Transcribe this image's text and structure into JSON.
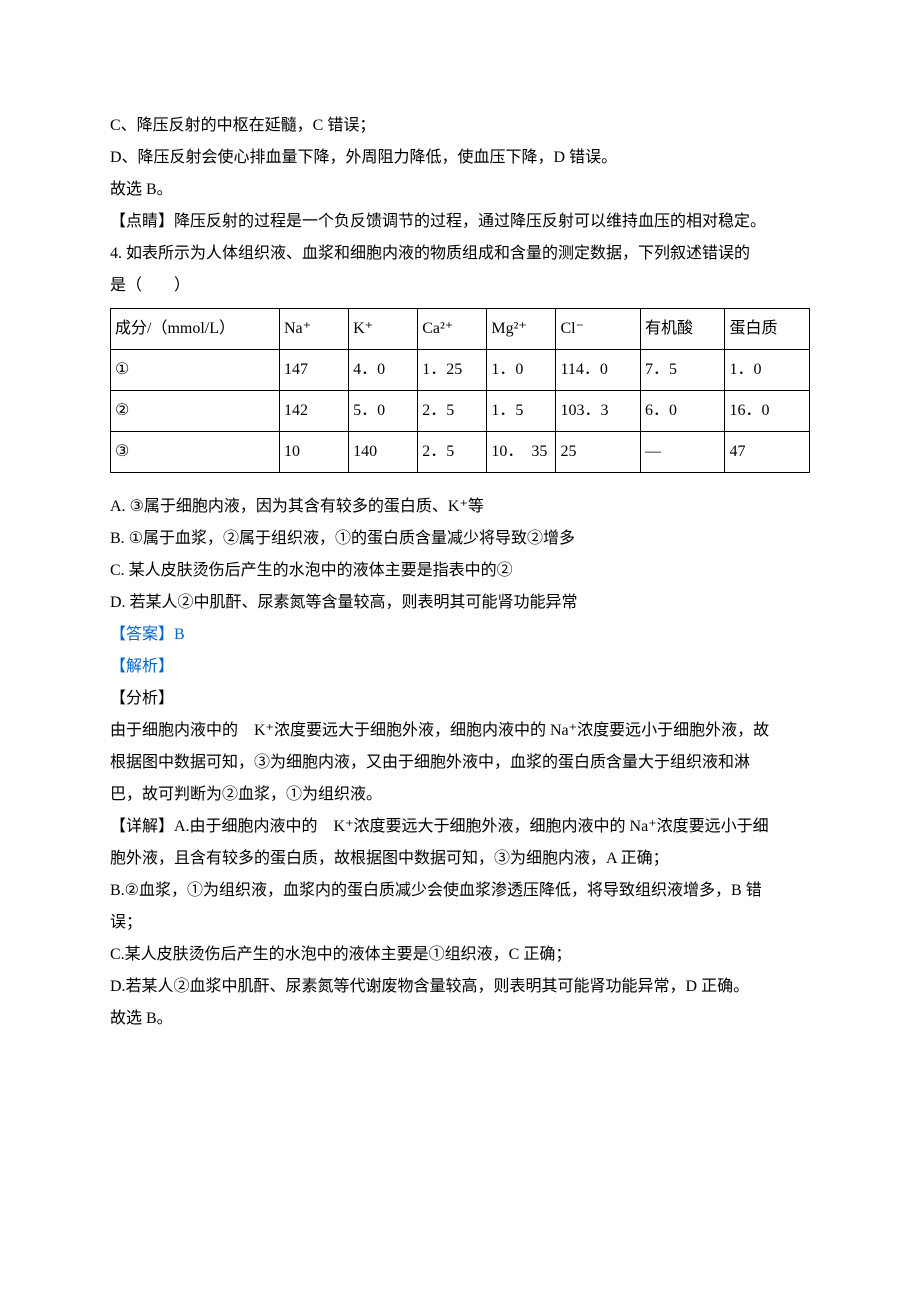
{
  "lines": {
    "pre1": "C、降压反射的中枢在延髓，C 错误；",
    "pre2": "D、降压反射会使心排血量下降，外周阻力降低，使血压下降，D 错误。",
    "pre3": "故选 B。",
    "pre4": "【点睛】降压反射的过程是一个负反馈调节的过程，通过降压反射可以维持血压的相对稳定。",
    "q4a": "4. 如表所示为人体组织液、血浆和细胞内液的物质组成和含量的测定数据，下列叙述错误的",
    "q4b": "是（　　）",
    "optA": "A. ③属于细胞内液，因为其含有较多的蛋白质、K⁺等",
    "optB": "B. ①属于血浆，②属于组织液，①的蛋白质含量减少将导致②增多",
    "optC": "C. 某人皮肤烫伤后产生的水泡中的液体主要是指表中的②",
    "optD": "D. 若某人②中肌酐、尿素氮等含量较高，则表明其可能肾功能异常",
    "ans": "【答案】B",
    "jiexi": "【解析】",
    "fenxi": "【分析】",
    "ana1": "由于细胞内液中的　K⁺浓度要远大于细胞外液，细胞内液中的 Na⁺浓度要远小于细胞外液，故",
    "ana2": "根据图中数据可知，③为细胞内液，又由于细胞外液中，血浆的蛋白质含量大于组织液和淋",
    "ana3": "巴，故可判断为②血浆，①为组织液。",
    "det1": "【详解】A.由于细胞内液中的　K⁺浓度要远大于细胞外液，细胞内液中的 Na⁺浓度要远小于细",
    "det2": "胞外液，且含有较多的蛋白质，故根据图中数据可知，③为细胞内液，A 正确；",
    "det3": "B.②血浆，①为组织液，血浆内的蛋白质减少会使血浆渗透压降低，将导致组织液增多，B 错",
    "det4": "误；",
    "det5": "C.某人皮肤烫伤后产生的水泡中的液体主要是①组织液，C 正确；",
    "det6": "D.若某人②血浆中肌酐、尿素氮等代谢废物含量较高，则表明其可能肾功能异常，D 正确。",
    "det7": "故选 B。"
  },
  "table": {
    "headers": {
      "c0": "成分/（mmol/L）",
      "c1": "Na⁺",
      "c2": "K⁺",
      "c3": "Ca²⁺",
      "c4": "Mg²⁺",
      "c5": "Cl⁻",
      "c6": "有机酸",
      "c7": "蛋白质"
    },
    "rows": [
      {
        "c0": "①",
        "c1": "147",
        "c2": "4．0",
        "c3": "1．25",
        "c4": "1．0",
        "c5": "114．0",
        "c6": "7．5",
        "c7": "1．0"
      },
      {
        "c0": "②",
        "c1": "142",
        "c2": "5．0",
        "c3": "2．5",
        "c4": "1．5",
        "c5": "103．3",
        "c6": "6．0",
        "c7": "16．0"
      },
      {
        "c0": "③",
        "c1": "10",
        "c2": "140",
        "c3": "2．5",
        "c4": "10．　35",
        "c5": "25",
        "c6": "—",
        "c7": "47"
      }
    ]
  },
  "colors": {
    "text": "#000000",
    "blue": "#0066cc",
    "border": "#000000",
    "bg": "#ffffff"
  }
}
